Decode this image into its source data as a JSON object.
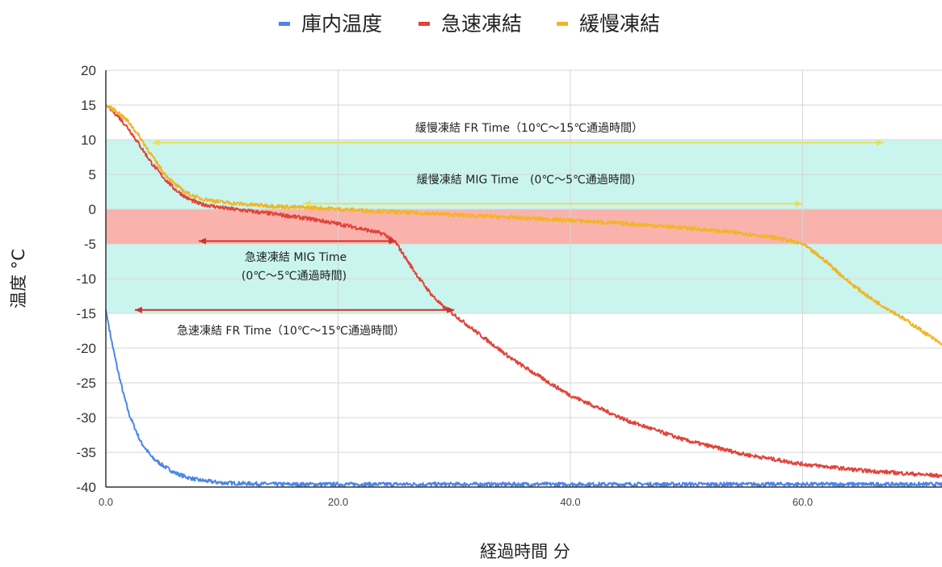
{
  "chart_data": {
    "type": "line",
    "xlabel": "経過時間 分",
    "ylabel": "温度 °C",
    "xlim": [
      0,
      72
    ],
    "ylim": [
      -40,
      20
    ],
    "x_ticks": [
      "0.0",
      "20.0",
      "40.0",
      "60.0"
    ],
    "x_tick_values": [
      0,
      20,
      40,
      60
    ],
    "y_ticks": [
      20,
      15,
      10,
      5,
      0,
      -5,
      -10,
      -15,
      -20,
      -25,
      -30,
      -35,
      -40
    ],
    "grid": true,
    "legend_position": "top-center",
    "series": [
      {
        "name": "庫内温度",
        "color": "#4a86e8",
        "x": [
          0,
          0.5,
          1,
          1.5,
          2,
          2.5,
          3,
          4,
          5,
          6,
          7,
          8,
          9,
          10,
          12,
          15,
          20,
          30,
          40,
          50,
          60,
          72
        ],
        "y": [
          -14.5,
          -19,
          -23,
          -26.5,
          -29.5,
          -31.5,
          -33.5,
          -35.8,
          -37,
          -38,
          -38.6,
          -39,
          -39.2,
          -39.4,
          -39.5,
          -39.6,
          -39.6,
          -39.6,
          -39.6,
          -39.6,
          -39.6,
          -39.6
        ]
      },
      {
        "name": "急速凍結",
        "color": "#e0443a",
        "x": [
          0,
          1,
          2,
          3,
          4,
          5,
          6,
          7,
          8,
          10,
          12,
          15,
          18,
          20,
          22,
          24,
          25,
          26,
          27,
          28,
          29,
          30,
          32,
          35,
          38,
          40,
          45,
          50,
          55,
          60,
          65,
          72
        ],
        "y": [
          15,
          13.5,
          11.5,
          9,
          6.5,
          4.5,
          2.8,
          1.6,
          0.8,
          0.2,
          -0.2,
          -0.8,
          -1.5,
          -2.1,
          -2.8,
          -3.6,
          -4.9,
          -7.5,
          -10,
          -12.2,
          -14,
          -15.2,
          -17.8,
          -21.6,
          -24.8,
          -26.8,
          -30.5,
          -33.3,
          -35.3,
          -36.7,
          -37.6,
          -38.4
        ]
      },
      {
        "name": "緩慢凍結",
        "color": "#f1b526",
        "x": [
          0,
          1,
          2,
          3,
          4,
          5,
          6,
          7,
          8,
          10,
          12,
          14,
          16,
          18,
          20,
          25,
          30,
          35,
          40,
          45,
          50,
          55,
          58,
          60,
          62,
          64,
          66,
          68,
          70,
          72
        ],
        "y": [
          15,
          14,
          12.5,
          10.2,
          7.6,
          5.2,
          3.5,
          2.3,
          1.6,
          1,
          0.7,
          0.5,
          0.3,
          0.2,
          0,
          -0.4,
          -0.8,
          -1.2,
          -1.6,
          -2.1,
          -2.7,
          -3.5,
          -4.2,
          -5,
          -7.5,
          -10.5,
          -13,
          -15,
          -17.2,
          -19.5
        ]
      }
    ],
    "bands": [
      {
        "from": -15,
        "to": -5,
        "color": "#c9f5ee"
      },
      {
        "from": -5,
        "to": 0,
        "color": "#f9b3ac"
      },
      {
        "from": 0,
        "to": 10,
        "color": "#c9f5ee"
      }
    ],
    "annotations": [
      {
        "text": "緩慢凍結 FR Time（10℃〜15℃通過時間）",
        "x_start": 4,
        "x_end": 67,
        "y": 9.6,
        "color": "#e8e05a"
      },
      {
        "text": "緩慢凍結 MIG Time　(0℃〜5℃通過時間)",
        "x_start": 17,
        "x_end": 60,
        "y": 0.8,
        "color": "#e8e05a"
      },
      {
        "text": "急速凍結 MIG Time",
        "x_start": 8,
        "x_end": 25,
        "y": -4.6,
        "color": "#d0312d"
      },
      {
        "text": "(0℃〜5℃通過時間)",
        "x_start": null,
        "x_end": null,
        "y": null,
        "color": "#222222"
      },
      {
        "text": "急速凍結 FR Time（10℃〜15℃通過時間）",
        "x_start": 2.5,
        "x_end": 30,
        "y": -14.5,
        "color": "#d0312d"
      }
    ]
  }
}
